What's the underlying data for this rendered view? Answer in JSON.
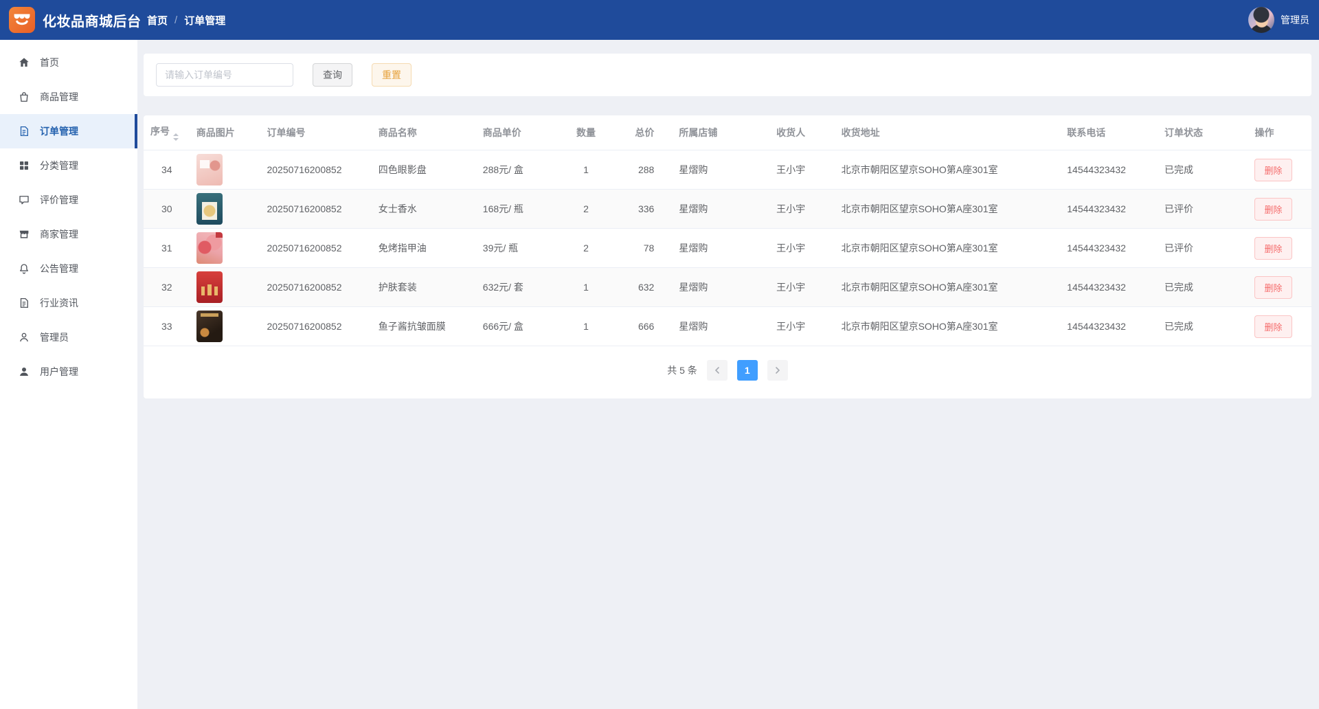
{
  "app": {
    "title": "化妆品商城后台",
    "logo": "storefront-logo",
    "admin_label": "管理员"
  },
  "breadcrumb": {
    "items": [
      "首页",
      "订单管理"
    ],
    "separator": "/"
  },
  "sidebar": {
    "items": [
      {
        "id": "home",
        "icon": "home",
        "label": "首页",
        "active": false
      },
      {
        "id": "products",
        "icon": "bag",
        "label": "商品管理",
        "active": false
      },
      {
        "id": "orders",
        "icon": "document",
        "label": "订单管理",
        "active": true
      },
      {
        "id": "categories",
        "icon": "grid",
        "label": "分类管理",
        "active": false
      },
      {
        "id": "reviews",
        "icon": "comment",
        "label": "评价管理",
        "active": false
      },
      {
        "id": "merchants",
        "icon": "shop",
        "label": "商家管理",
        "active": false
      },
      {
        "id": "announcements",
        "icon": "bell",
        "label": "公告管理",
        "active": false
      },
      {
        "id": "industry-news",
        "icon": "document",
        "label": "行业资讯",
        "active": false
      },
      {
        "id": "admin",
        "icon": "user",
        "label": "管理员",
        "active": false
      },
      {
        "id": "users",
        "icon": "user-filled",
        "label": "用户管理",
        "active": false
      }
    ]
  },
  "search": {
    "placeholder": "请输入订单编号",
    "value": "",
    "query_label": "查询",
    "reset_label": "重置"
  },
  "table": {
    "columns": [
      {
        "key": "index",
        "label": "序号",
        "sortable": true
      },
      {
        "key": "thumb",
        "label": "商品图片",
        "sortable": false
      },
      {
        "key": "order_no",
        "label": "订单编号",
        "sortable": false
      },
      {
        "key": "name",
        "label": "商品名称",
        "sortable": false
      },
      {
        "key": "unit_price",
        "label": "商品单价",
        "sortable": false
      },
      {
        "key": "qty",
        "label": "数量",
        "sortable": false
      },
      {
        "key": "total",
        "label": "总价",
        "sortable": false
      },
      {
        "key": "store",
        "label": "所属店铺",
        "sortable": false
      },
      {
        "key": "recipient",
        "label": "收货人",
        "sortable": false
      },
      {
        "key": "address",
        "label": "收货地址",
        "sortable": false
      },
      {
        "key": "phone",
        "label": "联系电话",
        "sortable": false
      },
      {
        "key": "status",
        "label": "订单状态",
        "sortable": false
      },
      {
        "key": "action",
        "label": "操作",
        "sortable": false
      }
    ],
    "rows": [
      {
        "index": "34",
        "thumb": "eyeshadow-palette",
        "order_no": "20250716200852",
        "name": "四色眼影盘",
        "unit_price": "288元/ 盒",
        "qty": "1",
        "total": "288",
        "store": "星熠购",
        "recipient": "王小宇",
        "address": "北京市朝阳区望京SOHO第A座301室",
        "phone": "14544323432",
        "status": "已完成",
        "action": "删除"
      },
      {
        "index": "30",
        "thumb": "perfume",
        "order_no": "20250716200852",
        "name": "女士香水",
        "unit_price": "168元/ 瓶",
        "qty": "2",
        "total": "336",
        "store": "星熠购",
        "recipient": "王小宇",
        "address": "北京市朝阳区望京SOHO第A座301室",
        "phone": "14544323432",
        "status": "已评价",
        "action": "删除"
      },
      {
        "index": "31",
        "thumb": "nail-polish",
        "order_no": "20250716200852",
        "name": "免烤指甲油",
        "unit_price": "39元/ 瓶",
        "qty": "2",
        "total": "78",
        "store": "星熠购",
        "recipient": "王小宇",
        "address": "北京市朝阳区望京SOHO第A座301室",
        "phone": "14544323432",
        "status": "已评价",
        "action": "删除"
      },
      {
        "index": "32",
        "thumb": "skincare-set",
        "order_no": "20250716200852",
        "name": "护肤套装",
        "unit_price": "632元/ 套",
        "qty": "1",
        "total": "632",
        "store": "星熠购",
        "recipient": "王小宇",
        "address": "北京市朝阳区望京SOHO第A座301室",
        "phone": "14544323432",
        "status": "已完成",
        "action": "删除"
      },
      {
        "index": "33",
        "thumb": "caviar-mask",
        "order_no": "20250716200852",
        "name": "鱼子酱抗皱面膜",
        "unit_price": "666元/ 盒",
        "qty": "1",
        "total": "666",
        "store": "星熠购",
        "recipient": "王小宇",
        "address": "北京市朝阳区望京SOHO第A座301室",
        "phone": "14544323432",
        "status": "已完成",
        "action": "删除"
      }
    ]
  },
  "pagination": {
    "total_label": "共 5 条",
    "prev_icon": "chevron-left",
    "page": "1",
    "next_icon": "chevron-right"
  },
  "colors": {
    "header_bg": "#1f4b9b",
    "logo_orange": "#ee7230",
    "active_item_bg": "#e9f1fb",
    "active_item_text": "#2361ae",
    "page_bg": "#eef0f5",
    "pager_active": "#409eff",
    "danger": "#f56c6c",
    "warning": "#e6a23c"
  }
}
